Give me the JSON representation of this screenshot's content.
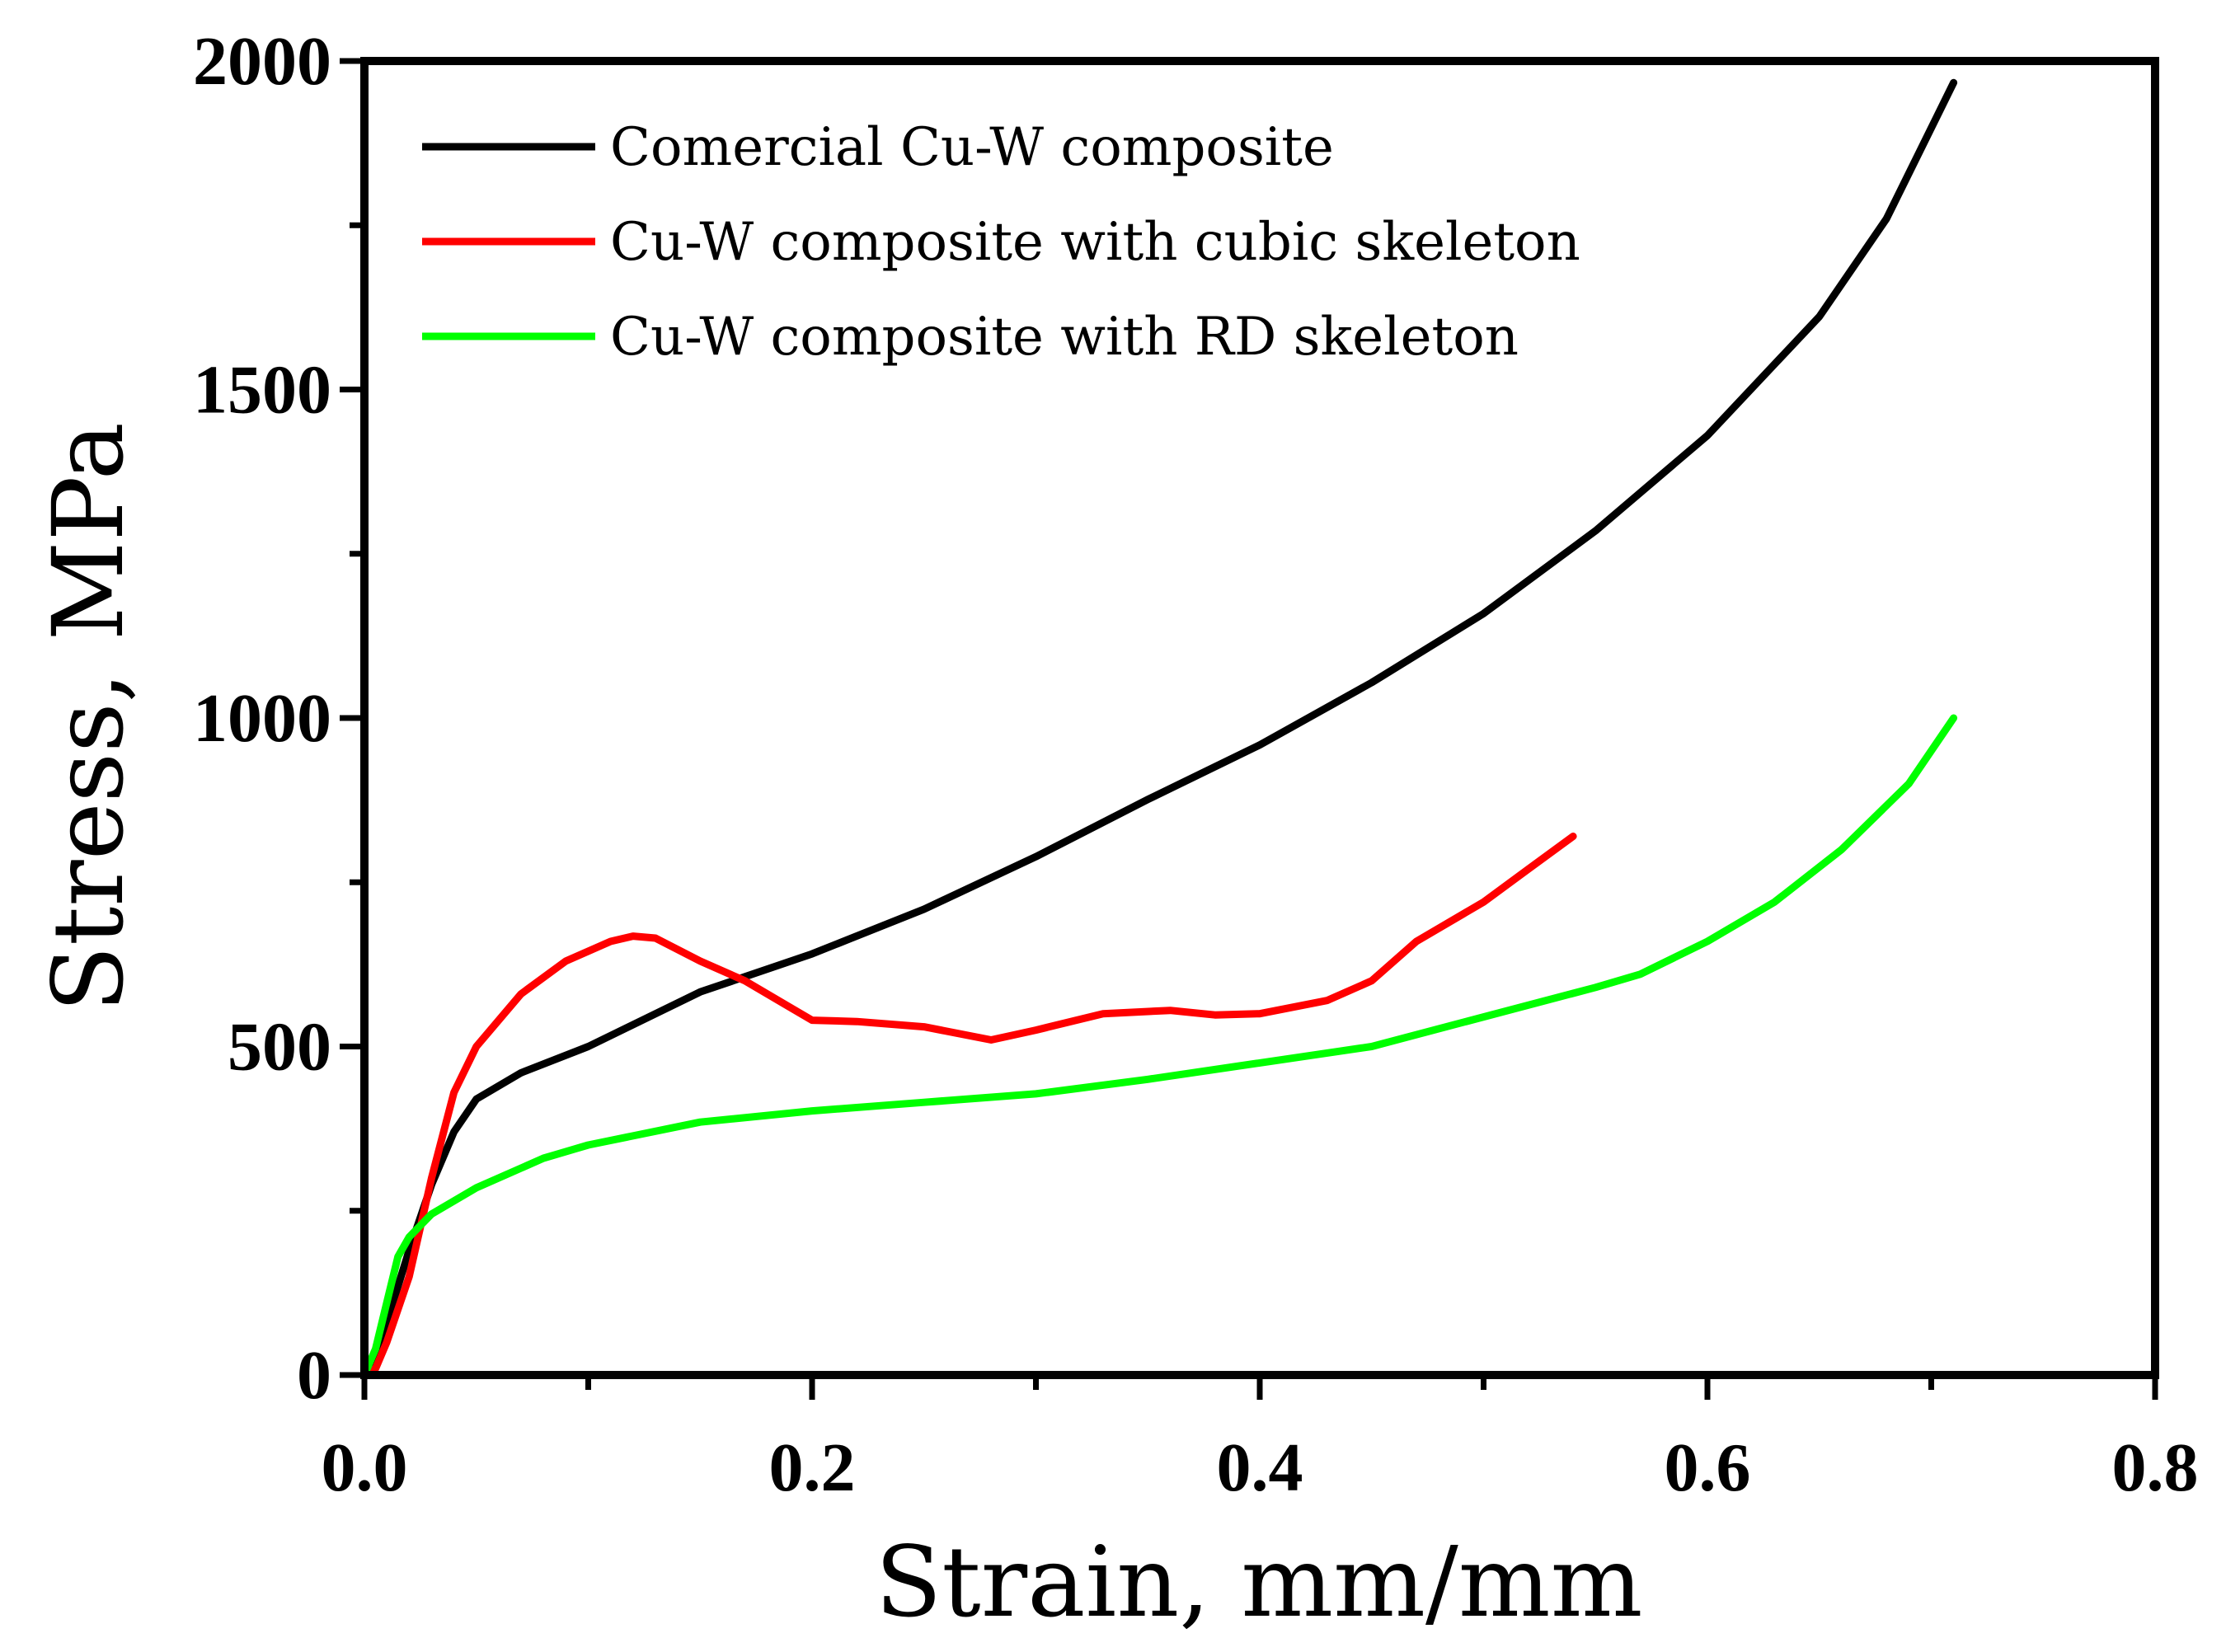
{
  "chart_data": {
    "type": "line",
    "title": "",
    "xlabel": "Strain, mm/mm",
    "ylabel": "Stress, MPa",
    "xlim": [
      0,
      0.8
    ],
    "ylim": [
      0,
      2000
    ],
    "xticks": [
      0.0,
      0.2,
      0.4,
      0.6,
      0.8
    ],
    "xtick_labels": [
      "0.0",
      "0.2",
      "0.4",
      "0.6",
      "0.8"
    ],
    "yticks": [
      0,
      500,
      1000,
      1500,
      2000
    ],
    "ytick_labels": [
      "0",
      "500",
      "1000",
      "1500",
      "2000"
    ],
    "x_minor_step": 0.1,
    "y_minor_step": 250,
    "grid": false,
    "legend_position": "top-left",
    "series": [
      {
        "name": "Comercial Cu-W composite",
        "color": "#000000",
        "x": [
          0,
          0.005,
          0.01,
          0.02,
          0.03,
          0.04,
          0.05,
          0.07,
          0.1,
          0.15,
          0.2,
          0.25,
          0.3,
          0.35,
          0.4,
          0.45,
          0.5,
          0.55,
          0.6,
          0.65,
          0.68,
          0.7,
          0.71
        ],
        "y": [
          0,
          20,
          80,
          190,
          290,
          370,
          420,
          460,
          500,
          583,
          641,
          709,
          789,
          876,
          959,
          1054,
          1159,
          1285,
          1430,
          1611,
          1760,
          1898,
          1967
        ]
      },
      {
        "name": "Cu-W composite with cubic skeleton",
        "color": "#ff0000",
        "x": [
          0,
          0.005,
          0.01,
          0.02,
          0.03,
          0.04,
          0.05,
          0.07,
          0.09,
          0.11,
          0.12,
          0.13,
          0.15,
          0.17,
          0.19,
          0.2,
          0.22,
          0.25,
          0.28,
          0.3,
          0.33,
          0.36,
          0.38,
          0.4,
          0.43,
          0.45,
          0.47,
          0.5,
          0.52,
          0.54
        ],
        "y": [
          0,
          10,
          50,
          150,
          300,
          430,
          500,
          580,
          630,
          660,
          668,
          665,
          630,
          600,
          560,
          540,
          538,
          530,
          510,
          525,
          550,
          555,
          548,
          550,
          570,
          600,
          660,
          720,
          770,
          820
        ]
      },
      {
        "name": "Cu-W composite with RD skeleton",
        "color": "#00ff00",
        "x": [
          0,
          0.005,
          0.01,
          0.015,
          0.02,
          0.03,
          0.05,
          0.08,
          0.1,
          0.15,
          0.2,
          0.25,
          0.3,
          0.35,
          0.4,
          0.45,
          0.5,
          0.55,
          0.57,
          0.6,
          0.63,
          0.66,
          0.69,
          0.71
        ],
        "y": [
          0,
          40,
          110,
          180,
          210,
          245,
          285,
          330,
          350,
          385,
          402,
          415,
          428,
          450,
          475,
          500,
          545,
          590,
          610,
          660,
          720,
          800,
          900,
          1000
        ]
      }
    ]
  }
}
